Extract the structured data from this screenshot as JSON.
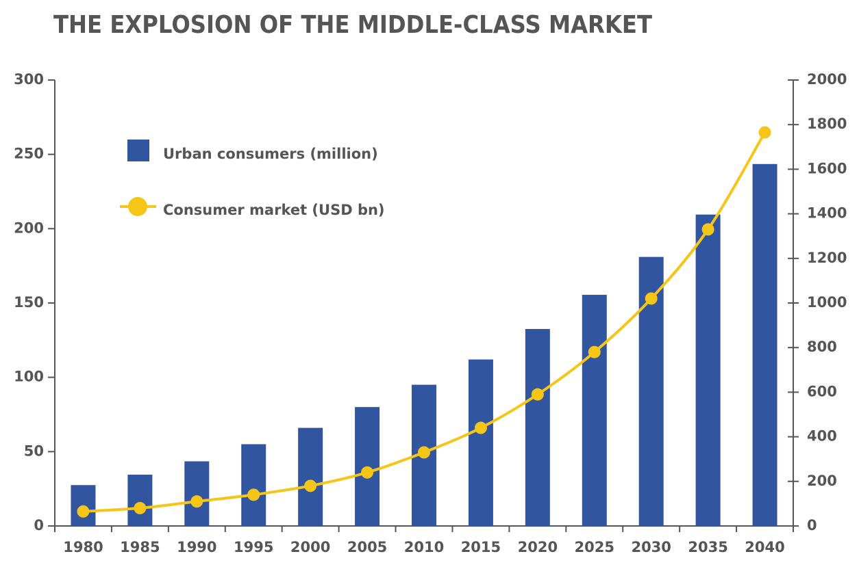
{
  "chart_data": {
    "type": "bar_line",
    "title": "THE EXPLOSION OF THE MIDDLE-CLASS MARKET",
    "categories": [
      "1980",
      "1985",
      "1990",
      "1995",
      "2000",
      "2005",
      "2010",
      "2015",
      "2020",
      "2025",
      "2030",
      "2035",
      "2040"
    ],
    "series": [
      {
        "name": "Urban consumers (million)",
        "type": "bar",
        "color": "#32559f",
        "values": [
          27.5,
          34.5,
          43.5,
          55,
          66,
          80,
          95,
          112,
          132.5,
          155.5,
          181,
          209.5,
          243.5
        ]
      },
      {
        "name": "Consumer market (USD bn)",
        "type": "line",
        "axis": "y2",
        "color": "#f5c518",
        "values": [
          65,
          80,
          110,
          140,
          180,
          240,
          330,
          440,
          590,
          780,
          1020,
          1330,
          1765
        ]
      }
    ],
    "ylim": [
      0,
      300
    ],
    "yticks": [
      0,
      50,
      100,
      150,
      200,
      250,
      300
    ],
    "y2lim": [
      0,
      2000
    ],
    "y2ticks": [
      0,
      200,
      400,
      600,
      800,
      1000,
      1200,
      1400,
      1600,
      1800,
      2000
    ]
  }
}
